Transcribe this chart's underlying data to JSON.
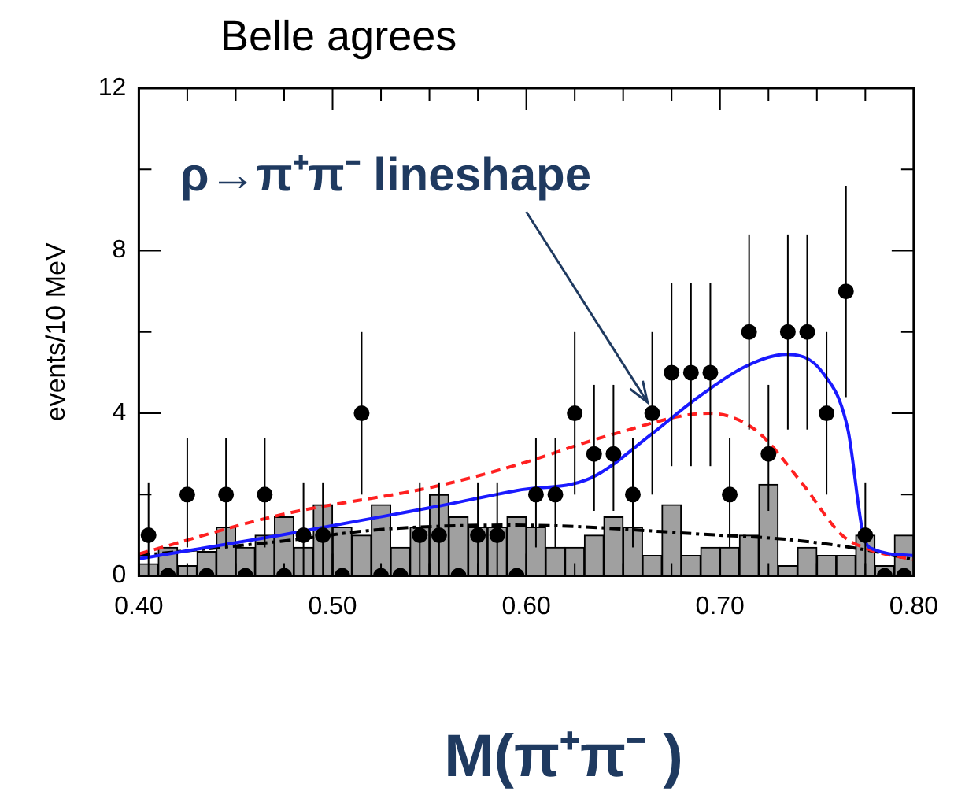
{
  "chart_data": {
    "type": "histogram",
    "title": "Belle agrees",
    "xlabel": "M(π⁺π⁻ )",
    "ylabel": "events/10 MeV",
    "annotations": [
      {
        "text": "ρ→π⁺π⁻ lineshape",
        "x": 0.665,
        "y": 4
      }
    ],
    "bins": [
      0.4,
      0.41,
      0.42,
      0.43,
      0.44,
      0.45,
      0.46,
      0.47,
      0.48,
      0.49,
      0.5,
      0.51,
      0.52,
      0.53,
      0.54,
      0.55,
      0.56,
      0.57,
      0.58,
      0.59,
      0.6,
      0.61,
      0.62,
      0.63,
      0.64,
      0.65,
      0.66,
      0.67,
      0.68,
      0.69,
      0.7,
      0.71,
      0.72,
      0.73,
      0.74,
      0.75,
      0.76,
      0.77,
      0.78,
      0.79,
      0.8
    ],
    "values": [
      0.3,
      0.7,
      0.25,
      0.6,
      1.2,
      0.7,
      1.0,
      1.45,
      0.7,
      1.75,
      1.2,
      1.0,
      1.75,
      0.7,
      1.2,
      2.0,
      1.45,
      1.2,
      1.2,
      1.45,
      1.2,
      0.7,
      0.7,
      1.0,
      1.45,
      1.2,
      0.5,
      1.75,
      0.5,
      0.7,
      0.7,
      1.0,
      2.25,
      0.25,
      0.7,
      0.5,
      0.5,
      1.0,
      0.25,
      1.0
    ],
    "color": "#a0a0a0",
    "series": [
      {
        "type": "line",
        "color": "#1a1aff",
        "line_style": "solid",
        "marker": "none",
        "x": [
          0.4,
          0.473,
          0.513,
          0.553,
          0.595,
          0.633,
          0.665,
          0.686,
          0.713,
          0.734,
          0.753,
          0.766,
          0.774,
          0.7795,
          0.8
        ],
        "values": [
          0.42,
          1.0,
          1.35,
          1.7,
          2.1,
          2.4,
          3.5,
          4.3,
          5.15,
          5.45,
          5.0,
          3.6,
          1.0,
          0.65,
          0.5
        ]
      },
      {
        "type": "line",
        "color": "#ff2020",
        "line_style": "dashed",
        "marker": "none",
        "x": [
          0.4,
          0.473,
          0.553,
          0.593,
          0.646,
          0.694,
          0.718,
          0.742,
          0.763,
          0.777,
          0.8
        ],
        "values": [
          0.54,
          1.5,
          2.2,
          2.7,
          3.5,
          4.0,
          3.6,
          2.3,
          1.0,
          0.65,
          0.4
        ]
      },
      {
        "type": "line",
        "color": "#000000",
        "line_style": "dotted",
        "marker": "none",
        "x": [
          0.4,
          0.473,
          0.527,
          0.593,
          0.7,
          0.734,
          0.774,
          0.8
        ],
        "values": [
          0.5,
          0.85,
          1.15,
          1.25,
          1.0,
          0.9,
          0.65,
          0.4
        ]
      },
      {
        "type": "scatter",
        "color": "#000000",
        "marker": "circle",
        "x": [
          0.405,
          0.415,
          0.425,
          0.435,
          0.445,
          0.455,
          0.465,
          0.475,
          0.485,
          0.495,
          0.505,
          0.515,
          0.525,
          0.535,
          0.545,
          0.555,
          0.565,
          0.575,
          0.585,
          0.595,
          0.605,
          0.615,
          0.625,
          0.635,
          0.645,
          0.655,
          0.665,
          0.675,
          0.685,
          0.695,
          0.705,
          0.715,
          0.725,
          0.735,
          0.745,
          0.755,
          0.765,
          0.775,
          0.785,
          0.795
        ],
        "values": [
          1,
          0,
          2,
          0,
          2,
          0,
          2,
          0,
          1,
          1,
          0,
          4,
          0,
          0,
          1,
          1,
          0,
          1,
          1,
          0,
          2,
          2,
          4,
          3,
          3,
          2,
          4,
          5,
          5,
          5,
          2,
          6,
          3,
          6,
          6,
          4,
          7,
          1,
          0,
          0
        ],
        "errors": [
          [
            0,
            2.3
          ],
          null,
          [
            0.7,
            3.4
          ],
          null,
          [
            0.7,
            3.4
          ],
          null,
          [
            0.7,
            3.4
          ],
          null,
          [
            0,
            2.3
          ],
          [
            0,
            2.3
          ],
          null,
          [
            2,
            6
          ],
          null,
          null,
          [
            0,
            2.3
          ],
          [
            0,
            2.3
          ],
          null,
          [
            0,
            2.3
          ],
          [
            0,
            2.3
          ],
          null,
          [
            0.7,
            3.4
          ],
          [
            0.7,
            3.4
          ],
          [
            2,
            6
          ],
          [
            1.6,
            4.7
          ],
          [
            1.6,
            4.7
          ],
          [
            0.7,
            3.4
          ],
          [
            2,
            6
          ],
          [
            2.7,
            7.2
          ],
          [
            2.7,
            7.2
          ],
          [
            2.7,
            7.2
          ],
          [
            0.7,
            3.4
          ],
          [
            3.6,
            8.4
          ],
          [
            1.6,
            4.7
          ],
          [
            3.6,
            8.4
          ],
          [
            3.6,
            8.4
          ],
          [
            2,
            6
          ],
          [
            4.4,
            9.6
          ],
          [
            0,
            2.3
          ],
          null,
          null
        ]
      }
    ],
    "xlim": [
      0.4,
      0.8
    ],
    "xticks": [
      {
        "value": 0.4,
        "label": "0.40"
      },
      {
        "value": 0.425,
        "label": null
      },
      {
        "value": 0.45,
        "label": null
      },
      {
        "value": 0.475,
        "label": null
      },
      {
        "value": 0.5,
        "label": "0.50"
      },
      {
        "value": 0.525,
        "label": null
      },
      {
        "value": 0.55,
        "label": null
      },
      {
        "value": 0.575,
        "label": null
      },
      {
        "value": 0.6,
        "label": "0.60"
      },
      {
        "value": 0.625,
        "label": null
      },
      {
        "value": 0.65,
        "label": null
      },
      {
        "value": 0.675,
        "label": null
      },
      {
        "value": 0.7,
        "label": "0.70"
      },
      {
        "value": 0.725,
        "label": null
      },
      {
        "value": 0.75,
        "label": null
      },
      {
        "value": 0.775,
        "label": null
      },
      {
        "value": 0.8,
        "label": "0.80"
      }
    ],
    "ylim": [
      0,
      12
    ],
    "yticks": [
      0,
      {
        "value": 2,
        "label": null
      },
      4,
      {
        "value": 6,
        "label": null
      },
      8,
      {
        "value": 10,
        "label": null
      },
      12
    ],
    "grid": false,
    "legend": false
  }
}
